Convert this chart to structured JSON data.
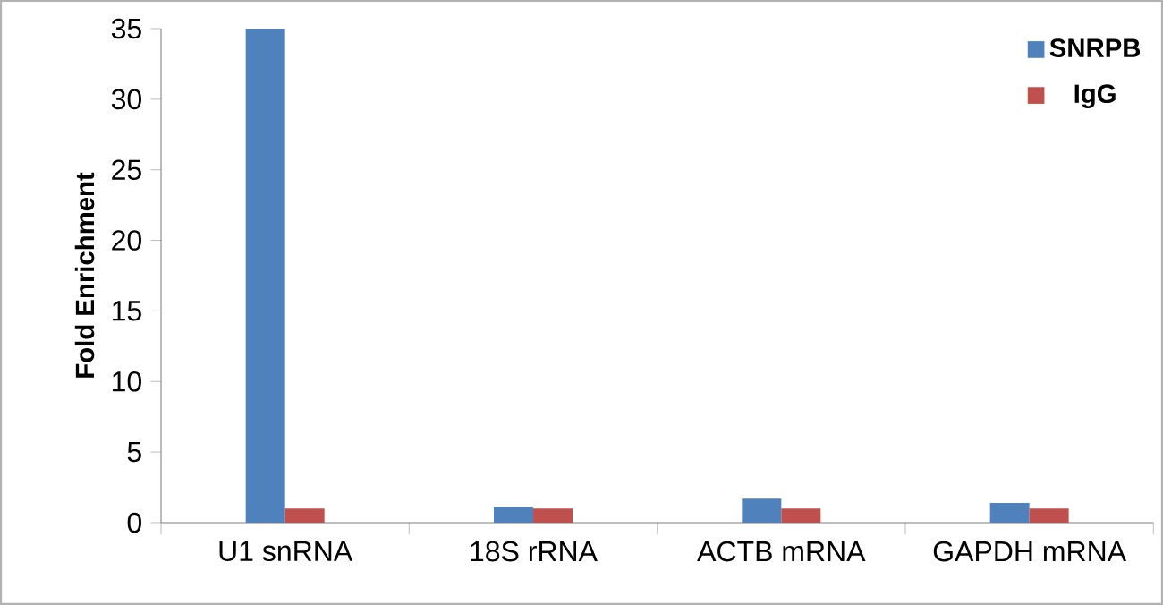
{
  "chart_data": {
    "type": "bar",
    "ylabel": "Fold Enrichment",
    "categories": [
      "U1 snRNA",
      "18S rRNA",
      "ACTB mRNA",
      "GAPDH mRNA"
    ],
    "series": [
      {
        "name": "SNRPB",
        "color": "#4f81bd",
        "values": [
          35,
          1.1,
          1.7,
          1.4
        ]
      },
      {
        "name": "IgG",
        "color": "#c0504d",
        "values": [
          1.0,
          1.0,
          1.0,
          1.0
        ]
      }
    ],
    "ylim": [
      0,
      35
    ],
    "yticks": [
      0,
      5,
      10,
      15,
      20,
      25,
      30,
      35
    ],
    "grid": false,
    "legend": "top right"
  }
}
